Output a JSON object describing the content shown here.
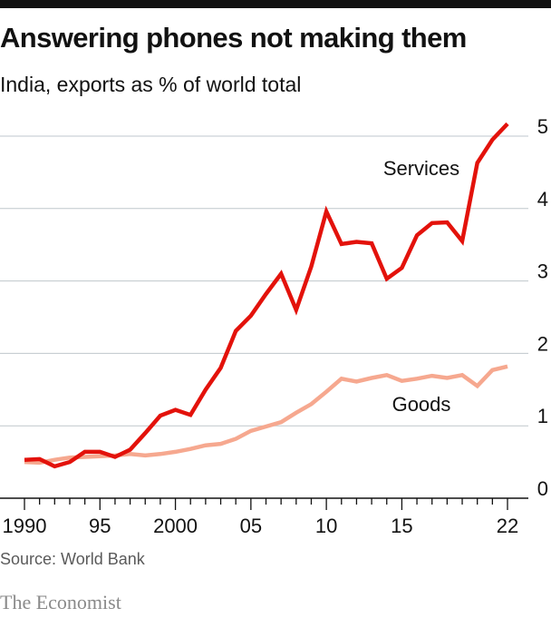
{
  "header": {
    "title": "Answering phones not making them",
    "subtitle": "India, exports as % of world total"
  },
  "footer": {
    "source": "Source: World Bank",
    "brand": "The Economist"
  },
  "colors": {
    "services": "#e3120b",
    "goods": "#f6a88f",
    "grid": "#bfc7cc",
    "axis": "#121212",
    "topbar": "#121212"
  },
  "chart_data": {
    "type": "line",
    "x": [
      1990,
      1991,
      1992,
      1993,
      1994,
      1995,
      1996,
      1997,
      1998,
      1999,
      2000,
      2001,
      2002,
      2003,
      2004,
      2005,
      2006,
      2007,
      2008,
      2009,
      2010,
      2011,
      2012,
      2013,
      2014,
      2015,
      2016,
      2017,
      2018,
      2019,
      2020,
      2021,
      2022
    ],
    "series": [
      {
        "name": "Services",
        "values": [
          0.53,
          0.54,
          0.44,
          0.5,
          0.64,
          0.64,
          0.57,
          0.67,
          0.9,
          1.14,
          1.22,
          1.15,
          1.5,
          1.8,
          2.31,
          2.52,
          2.82,
          3.1,
          2.6,
          3.2,
          3.96,
          3.51,
          3.54,
          3.52,
          3.03,
          3.18,
          3.63,
          3.8,
          3.81,
          3.55,
          4.63,
          4.95,
          5.17
        ]
      },
      {
        "name": "Goods",
        "values": [
          0.5,
          0.49,
          0.53,
          0.56,
          0.57,
          0.58,
          0.59,
          0.61,
          0.59,
          0.61,
          0.64,
          0.68,
          0.73,
          0.75,
          0.82,
          0.93,
          0.99,
          1.05,
          1.18,
          1.3,
          1.47,
          1.65,
          1.61,
          1.66,
          1.7,
          1.62,
          1.65,
          1.69,
          1.66,
          1.7,
          1.55,
          1.77,
          1.82
        ]
      }
    ],
    "series_labels": [
      "Services",
      "Goods"
    ],
    "x_ticks": [
      1990,
      1995,
      2000,
      2005,
      2010,
      2015,
      2022
    ],
    "x_tick_labels": [
      "1990",
      "95",
      "2000",
      "05",
      "10",
      "15",
      "22"
    ],
    "y_ticks": [
      0,
      1,
      2,
      3,
      4,
      5
    ],
    "y_tick_labels": [
      "0",
      "1",
      "2",
      "3",
      "4",
      "5"
    ],
    "xlim": [
      1990,
      2022
    ],
    "ylim": [
      0,
      5
    ],
    "grid": true,
    "y_axis_position": "right"
  }
}
